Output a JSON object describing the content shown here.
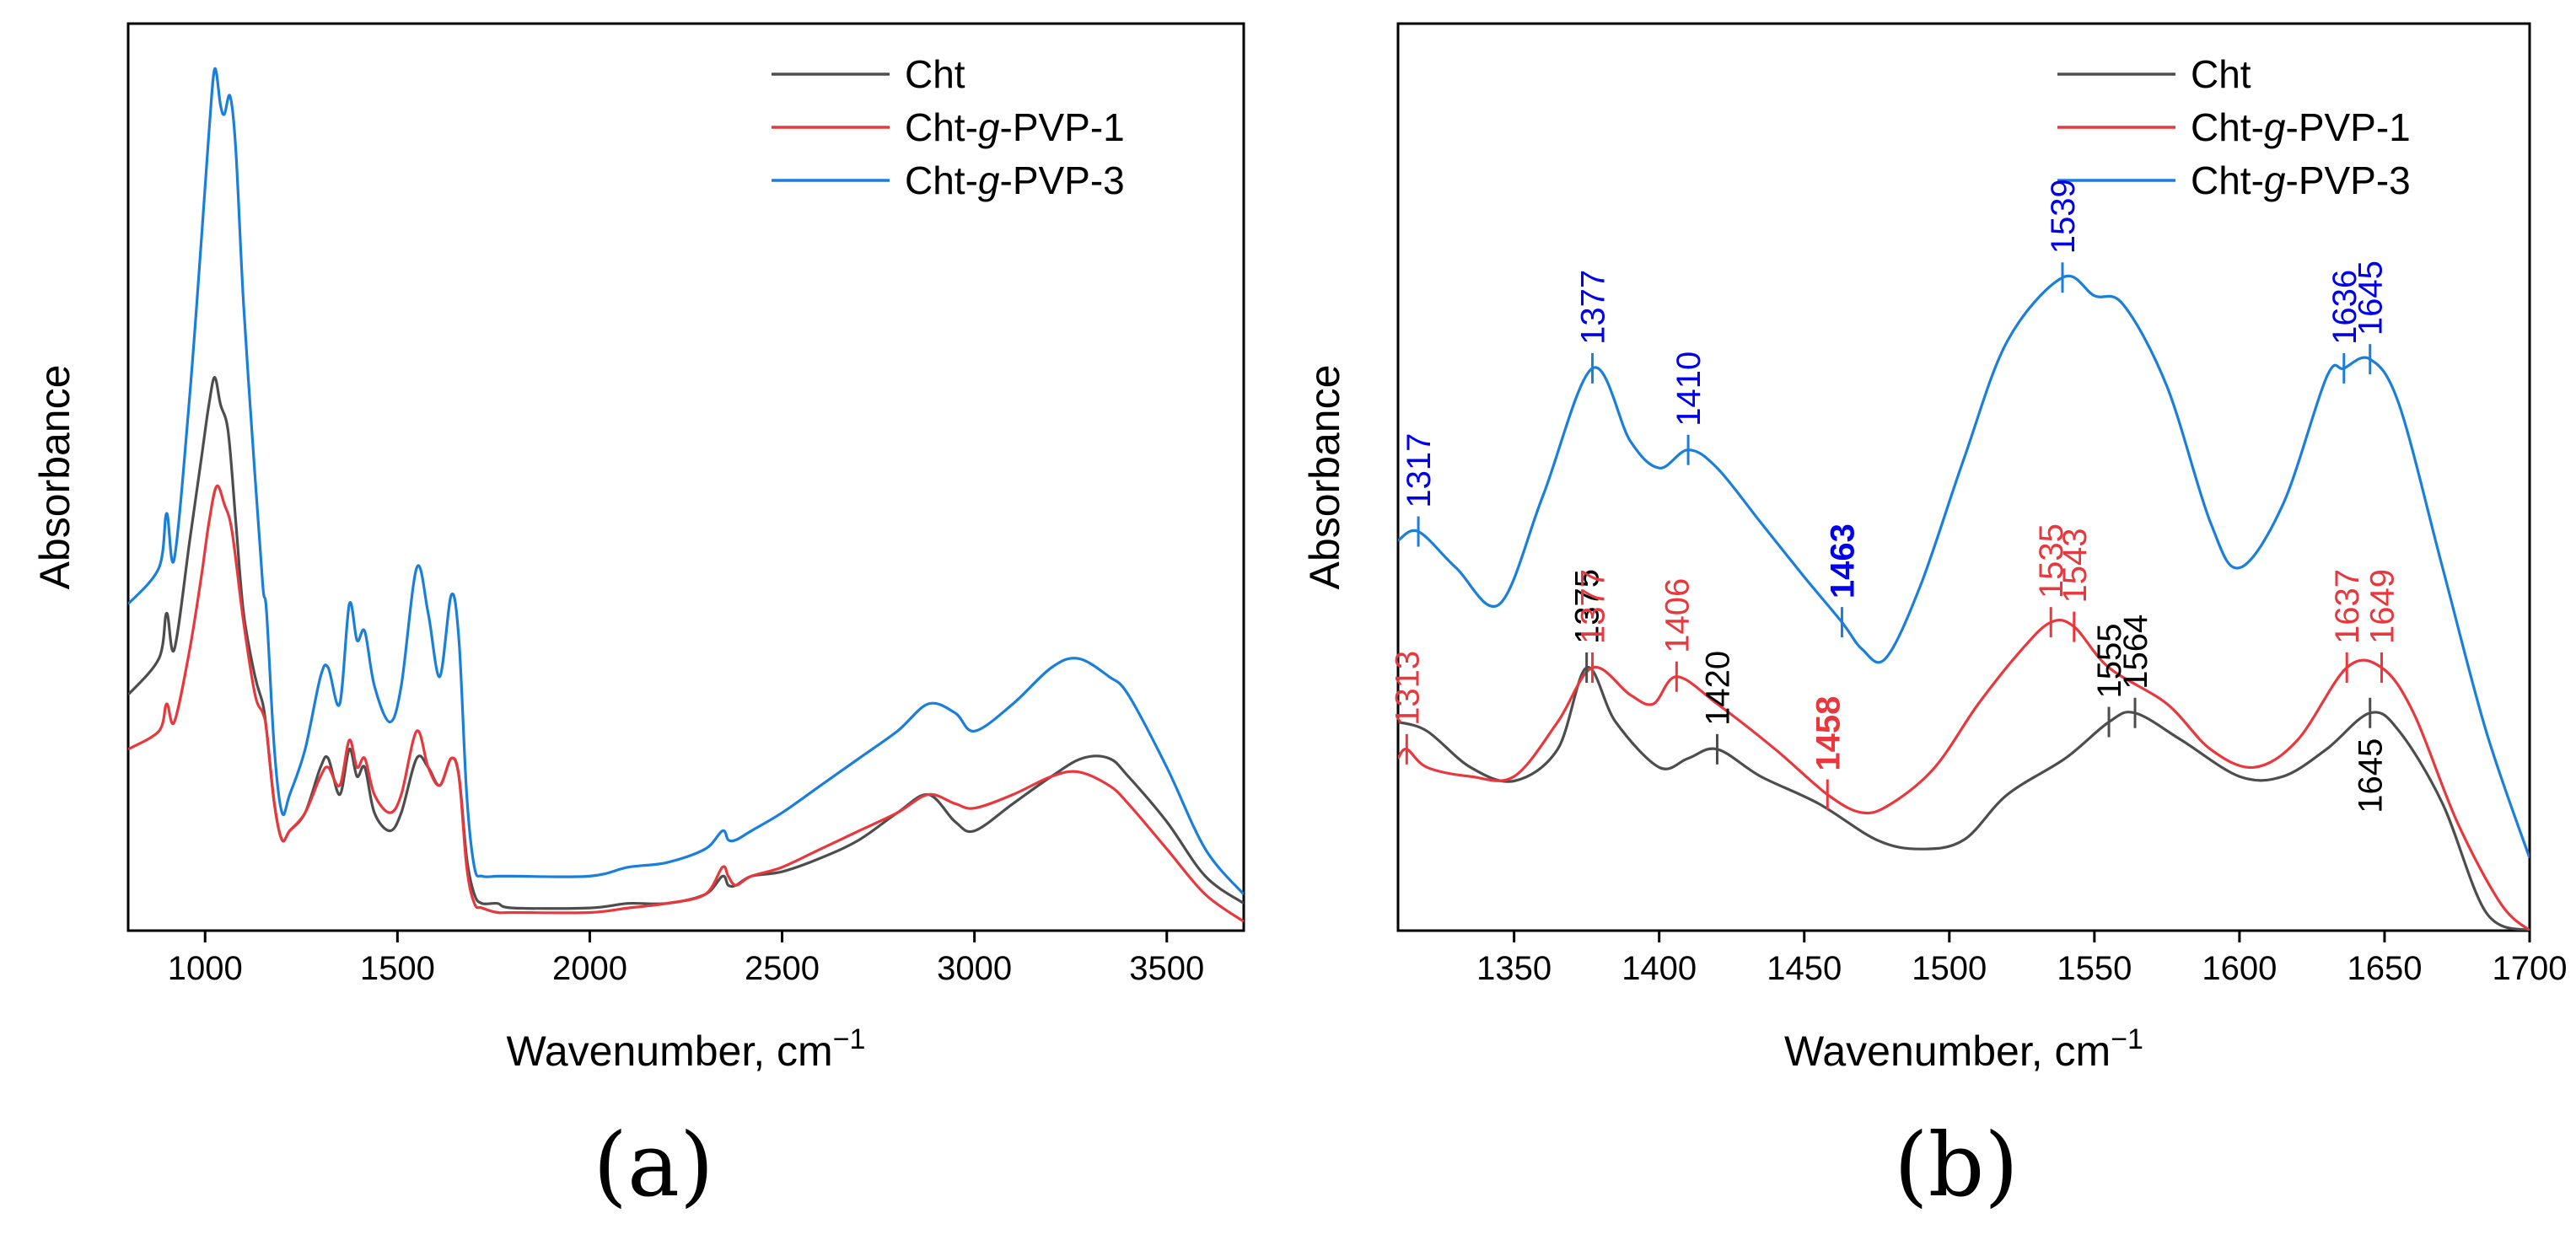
{
  "panel_labels": [
    "(a)",
    "(b)"
  ],
  "chart_data": [
    {
      "type": "line",
      "panel": "(a)",
      "xlabel": "Wavenumber, cm",
      "xlabel_sup": "−1",
      "ylabel": "Absorbance",
      "xlim": [
        800,
        3700
      ],
      "ylim": [
        0,
        1
      ],
      "xticks": [
        1000,
        1500,
        2000,
        2500,
        3000,
        3500
      ],
      "legend": {
        "placement": "top-right",
        "entries": [
          {
            "pre": "Cht",
            "ital": "",
            "post": ""
          },
          {
            "pre": "Cht-",
            "ital": "g",
            "post": "-PVP-1"
          },
          {
            "pre": "Cht-",
            "ital": "g",
            "post": "-PVP-3"
          }
        ]
      },
      "series": [
        {
          "name": "Cht",
          "color": "#4d4d4d",
          "x": [
            800,
            880,
            900,
            920,
            960,
            990,
            1010,
            1025,
            1040,
            1060,
            1080,
            1100,
            1130,
            1150,
            1160,
            1180,
            1200,
            1220,
            1260,
            1300,
            1320,
            1350,
            1375,
            1395,
            1415,
            1440,
            1480,
            1510,
            1550,
            1580,
            1610,
            1640,
            1660,
            1680,
            1700,
            1720,
            1760,
            1800,
            2000,
            2100,
            2200,
            2300,
            2345,
            2360,
            2380,
            2420,
            2500,
            2600,
            2700,
            2800,
            2880,
            2950,
            3000,
            3100,
            3200,
            3280,
            3350,
            3400,
            3500,
            3600,
            3700
          ],
          "y": [
            0.26,
            0.3,
            0.35,
            0.31,
            0.43,
            0.52,
            0.58,
            0.61,
            0.58,
            0.55,
            0.45,
            0.35,
            0.28,
            0.25,
            0.22,
            0.14,
            0.1,
            0.11,
            0.13,
            0.18,
            0.19,
            0.15,
            0.2,
            0.17,
            0.18,
            0.13,
            0.11,
            0.13,
            0.19,
            0.18,
            0.16,
            0.19,
            0.17,
            0.08,
            0.04,
            0.03,
            0.03,
            0.025,
            0.025,
            0.03,
            0.03,
            0.04,
            0.06,
            0.05,
            0.05,
            0.06,
            0.065,
            0.08,
            0.1,
            0.13,
            0.15,
            0.12,
            0.11,
            0.14,
            0.17,
            0.19,
            0.19,
            0.17,
            0.12,
            0.06,
            0.03
          ]
        },
        {
          "name": "Cht-g-PVP-1",
          "color": "#e8383d",
          "x": [
            800,
            880,
            900,
            920,
            960,
            990,
            1010,
            1030,
            1050,
            1070,
            1100,
            1130,
            1150,
            1160,
            1180,
            1200,
            1220,
            1260,
            1300,
            1320,
            1350,
            1375,
            1395,
            1415,
            1440,
            1480,
            1510,
            1550,
            1580,
            1610,
            1640,
            1660,
            1680,
            1700,
            1720,
            1760,
            1800,
            2000,
            2100,
            2200,
            2300,
            2345,
            2360,
            2380,
            2420,
            2500,
            2600,
            2700,
            2800,
            2880,
            2950,
            3000,
            3100,
            3200,
            3270,
            3350,
            3400,
            3500,
            3600,
            3700
          ],
          "y": [
            0.2,
            0.22,
            0.25,
            0.23,
            0.31,
            0.39,
            0.45,
            0.49,
            0.47,
            0.44,
            0.34,
            0.26,
            0.24,
            0.22,
            0.14,
            0.1,
            0.11,
            0.13,
            0.17,
            0.18,
            0.16,
            0.21,
            0.18,
            0.19,
            0.15,
            0.13,
            0.15,
            0.22,
            0.18,
            0.16,
            0.19,
            0.17,
            0.07,
            0.03,
            0.025,
            0.02,
            0.02,
            0.02,
            0.025,
            0.03,
            0.04,
            0.07,
            0.06,
            0.05,
            0.06,
            0.07,
            0.09,
            0.11,
            0.13,
            0.15,
            0.14,
            0.135,
            0.15,
            0.17,
            0.175,
            0.16,
            0.14,
            0.09,
            0.04,
            0.01
          ]
        },
        {
          "name": "Cht-g-PVP-3",
          "color": "#1a7fdb",
          "x": [
            800,
            880,
            900,
            920,
            960,
            990,
            1010,
            1025,
            1040,
            1050,
            1065,
            1080,
            1100,
            1130,
            1150,
            1160,
            1180,
            1200,
            1220,
            1260,
            1300,
            1320,
            1350,
            1375,
            1395,
            1415,
            1440,
            1480,
            1510,
            1550,
            1580,
            1610,
            1640,
            1660,
            1680,
            1700,
            1720,
            1760,
            1800,
            2000,
            2100,
            2200,
            2300,
            2345,
            2360,
            2380,
            2420,
            2500,
            2600,
            2700,
            2800,
            2880,
            2950,
            3000,
            3100,
            3200,
            3270,
            3350,
            3400,
            3500,
            3600,
            3700
          ],
          "y": [
            0.36,
            0.4,
            0.46,
            0.41,
            0.59,
            0.76,
            0.88,
            0.95,
            0.91,
            0.9,
            0.92,
            0.86,
            0.69,
            0.5,
            0.38,
            0.35,
            0.2,
            0.13,
            0.15,
            0.2,
            0.28,
            0.29,
            0.25,
            0.36,
            0.32,
            0.33,
            0.27,
            0.23,
            0.27,
            0.4,
            0.35,
            0.28,
            0.37,
            0.32,
            0.15,
            0.07,
            0.06,
            0.06,
            0.06,
            0.06,
            0.07,
            0.075,
            0.09,
            0.11,
            0.1,
            0.1,
            0.11,
            0.13,
            0.16,
            0.19,
            0.22,
            0.25,
            0.24,
            0.22,
            0.25,
            0.29,
            0.3,
            0.28,
            0.26,
            0.18,
            0.09,
            0.04
          ]
        }
      ]
    },
    {
      "type": "line",
      "panel": "(b)",
      "xlabel": "Wavenumber, cm",
      "xlabel_sup": "−1",
      "ylabel": "Absorbance",
      "xlim": [
        1310,
        1700
      ],
      "ylim": [
        0,
        1
      ],
      "xticks": [
        1350,
        1400,
        1450,
        1500,
        1550,
        1600,
        1650,
        1700
      ],
      "legend": {
        "placement": "top-right",
        "entries": [
          {
            "pre": "Cht",
            "ital": "",
            "post": ""
          },
          {
            "pre": "Cht-",
            "ital": "g",
            "post": "-PVP-1"
          },
          {
            "pre": "Cht-",
            "ital": "g",
            "post": "-PVP-3"
          }
        ]
      },
      "series": [
        {
          "name": "Cht",
          "color": "#4d4d4d",
          "x": [
            1310,
            1320,
            1335,
            1350,
            1365,
            1375,
            1385,
            1400,
            1410,
            1420,
            1435,
            1455,
            1475,
            1490,
            1505,
            1520,
            1540,
            1555,
            1564,
            1580,
            1600,
            1615,
            1630,
            1645,
            1655,
            1670,
            1685,
            1700
          ],
          "y": [
            0.23,
            0.22,
            0.18,
            0.165,
            0.2,
            0.29,
            0.23,
            0.18,
            0.19,
            0.2,
            0.17,
            0.14,
            0.1,
            0.09,
            0.1,
            0.15,
            0.19,
            0.23,
            0.24,
            0.21,
            0.17,
            0.17,
            0.2,
            0.24,
            0.22,
            0.14,
            0.02,
            0.0
          ]
        },
        {
          "name": "Cht-g-PVP-1",
          "color": "#e8383d",
          "x": [
            1310,
            1313,
            1320,
            1335,
            1350,
            1365,
            1377,
            1390,
            1398,
            1406,
            1420,
            1440,
            1458,
            1470,
            1480,
            1495,
            1510,
            1525,
            1535,
            1543,
            1555,
            1575,
            1590,
            1605,
            1620,
            1637,
            1649,
            1660,
            1675,
            1690,
            1700
          ],
          "y": [
            0.19,
            0.2,
            0.18,
            0.17,
            0.17,
            0.23,
            0.29,
            0.26,
            0.25,
            0.28,
            0.25,
            0.2,
            0.15,
            0.13,
            0.14,
            0.18,
            0.25,
            0.31,
            0.34,
            0.335,
            0.29,
            0.25,
            0.2,
            0.18,
            0.21,
            0.29,
            0.29,
            0.24,
            0.12,
            0.03,
            0.0
          ]
        },
        {
          "name": "Cht-g-PVP-3",
          "color": "#1a7fdb",
          "x": [
            1310,
            1317,
            1330,
            1345,
            1360,
            1377,
            1390,
            1400,
            1410,
            1420,
            1435,
            1450,
            1463,
            1470,
            1478,
            1490,
            1505,
            1520,
            1539,
            1550,
            1560,
            1575,
            1590,
            1600,
            1615,
            1630,
            1636,
            1645,
            1655,
            1670,
            1685,
            1700
          ],
          "y": [
            0.43,
            0.44,
            0.4,
            0.36,
            0.48,
            0.62,
            0.54,
            0.51,
            0.53,
            0.51,
            0.45,
            0.39,
            0.34,
            0.31,
            0.3,
            0.38,
            0.52,
            0.65,
            0.72,
            0.7,
            0.69,
            0.6,
            0.45,
            0.4,
            0.47,
            0.61,
            0.62,
            0.63,
            0.58,
            0.4,
            0.22,
            0.08
          ]
        }
      ],
      "annotations": [
        {
          "series": "Cht",
          "x": 1375,
          "text": "1375",
          "bold": false,
          "color": "#000000",
          "side": "above"
        },
        {
          "series": "Cht",
          "x": 1420,
          "text": "1420",
          "bold": false,
          "color": "#000000",
          "side": "above"
        },
        {
          "series": "Cht",
          "x": 1555,
          "text": "1555",
          "bold": false,
          "color": "#000000",
          "side": "above"
        },
        {
          "series": "Cht",
          "x": 1564,
          "text": "1564",
          "bold": false,
          "color": "#000000",
          "side": "above"
        },
        {
          "series": "Cht",
          "x": 1645,
          "text": "1645",
          "bold": false,
          "color": "#000000",
          "side": "below"
        },
        {
          "series": "Cht-g-PVP-1",
          "x": 1313,
          "text": "1313",
          "bold": false,
          "color": "#e8383d",
          "side": "above"
        },
        {
          "series": "Cht-g-PVP-1",
          "x": 1377,
          "text": "1377",
          "bold": false,
          "color": "#e8383d",
          "side": "above"
        },
        {
          "series": "Cht-g-PVP-1",
          "x": 1406,
          "text": "1406",
          "bold": false,
          "color": "#e8383d",
          "side": "above"
        },
        {
          "series": "Cht-g-PVP-1",
          "x": 1458,
          "text": "1458",
          "bold": true,
          "color": "#e8383d",
          "side": "above"
        },
        {
          "series": "Cht-g-PVP-1",
          "x": 1535,
          "text": "1535",
          "bold": false,
          "color": "#e8383d",
          "side": "above"
        },
        {
          "series": "Cht-g-PVP-1",
          "x": 1543,
          "text": "1543",
          "bold": false,
          "color": "#e8383d",
          "side": "above"
        },
        {
          "series": "Cht-g-PVP-1",
          "x": 1637,
          "text": "1637",
          "bold": false,
          "color": "#e8383d",
          "side": "above"
        },
        {
          "series": "Cht-g-PVP-1",
          "x": 1649,
          "text": "1649",
          "bold": false,
          "color": "#e8383d",
          "side": "above"
        },
        {
          "series": "Cht-g-PVP-3",
          "x": 1317,
          "text": "1317",
          "bold": false,
          "color": "#0000ee",
          "side": "above"
        },
        {
          "series": "Cht-g-PVP-3",
          "x": 1377,
          "text": "1377",
          "bold": false,
          "color": "#0000ee",
          "side": "above"
        },
        {
          "series": "Cht-g-PVP-3",
          "x": 1410,
          "text": "1410",
          "bold": false,
          "color": "#0000ee",
          "side": "above"
        },
        {
          "series": "Cht-g-PVP-3",
          "x": 1463,
          "text": "1463",
          "bold": true,
          "color": "#0000ee",
          "side": "above"
        },
        {
          "series": "Cht-g-PVP-3",
          "x": 1539,
          "text": "1539",
          "bold": false,
          "color": "#0000ee",
          "side": "above"
        },
        {
          "series": "Cht-g-PVP-3",
          "x": 1636,
          "text": "1636",
          "bold": false,
          "color": "#0000ee",
          "side": "above"
        },
        {
          "series": "Cht-g-PVP-3",
          "x": 1645,
          "text": "1645",
          "bold": false,
          "color": "#0000ee",
          "side": "above"
        }
      ]
    }
  ]
}
